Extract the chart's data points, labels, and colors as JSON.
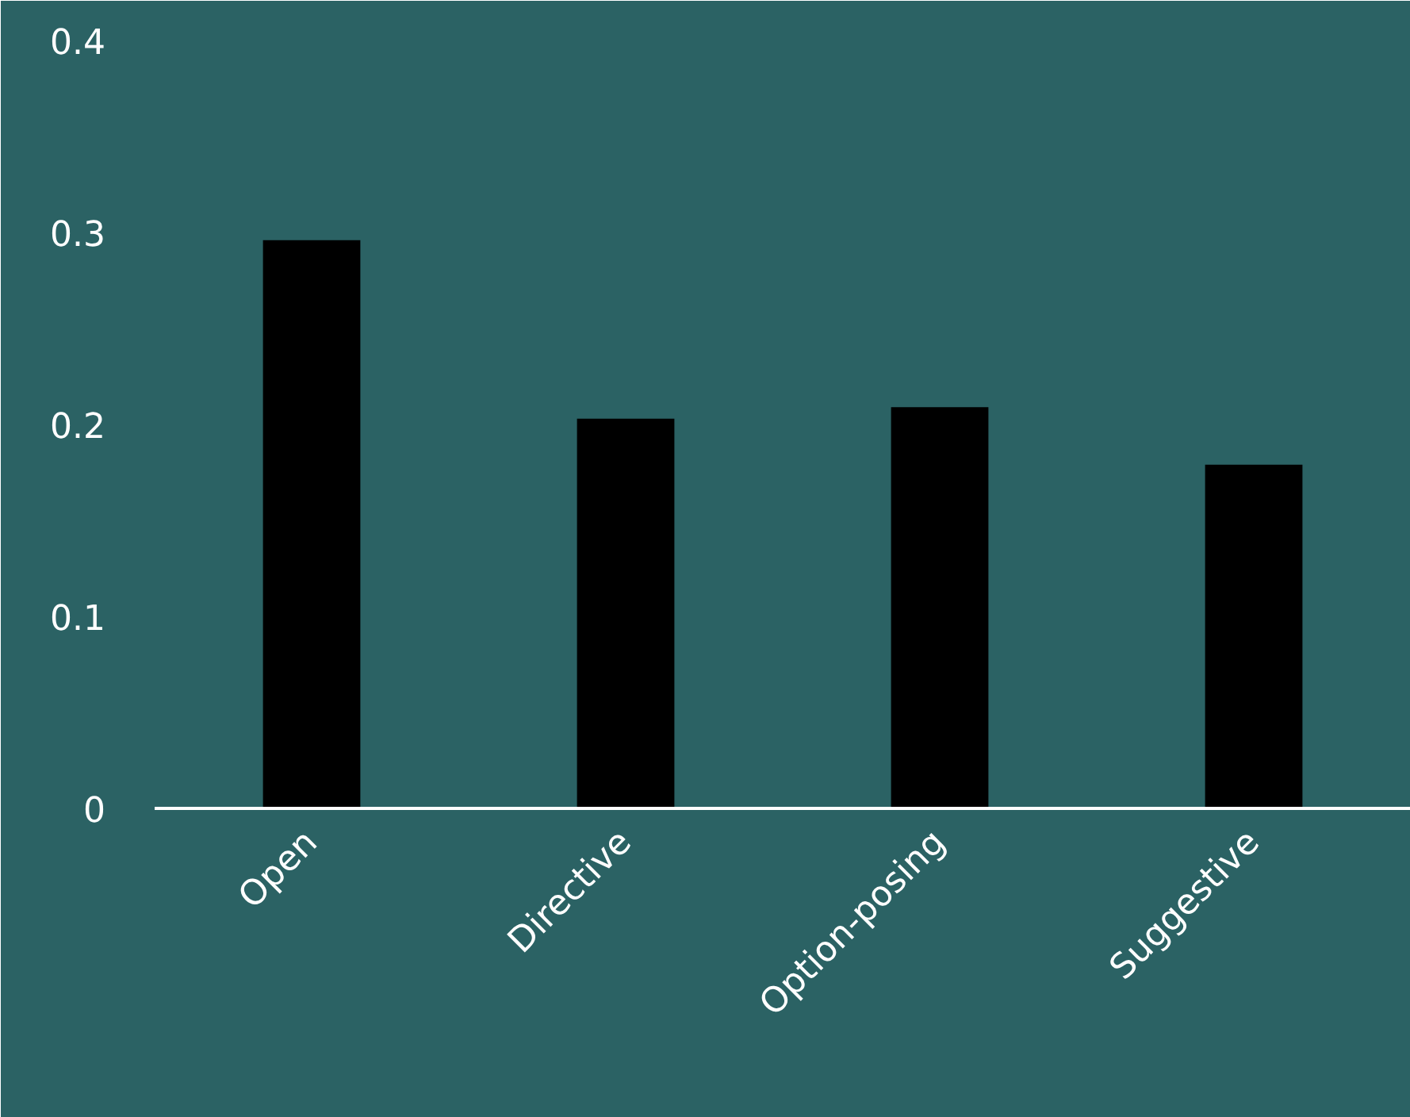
{
  "chart_data": {
    "type": "bar",
    "categories": [
      "Open",
      "Directive",
      "Option-posing",
      "Suggestive"
    ],
    "values": [
      0.296,
      0.203,
      0.209,
      0.179
    ],
    "color": "#000000",
    "ylim": [
      0,
      0.4
    ],
    "yticks": [
      0,
      0.1,
      0.2,
      0.3,
      0.4
    ],
    "grid": false
  }
}
